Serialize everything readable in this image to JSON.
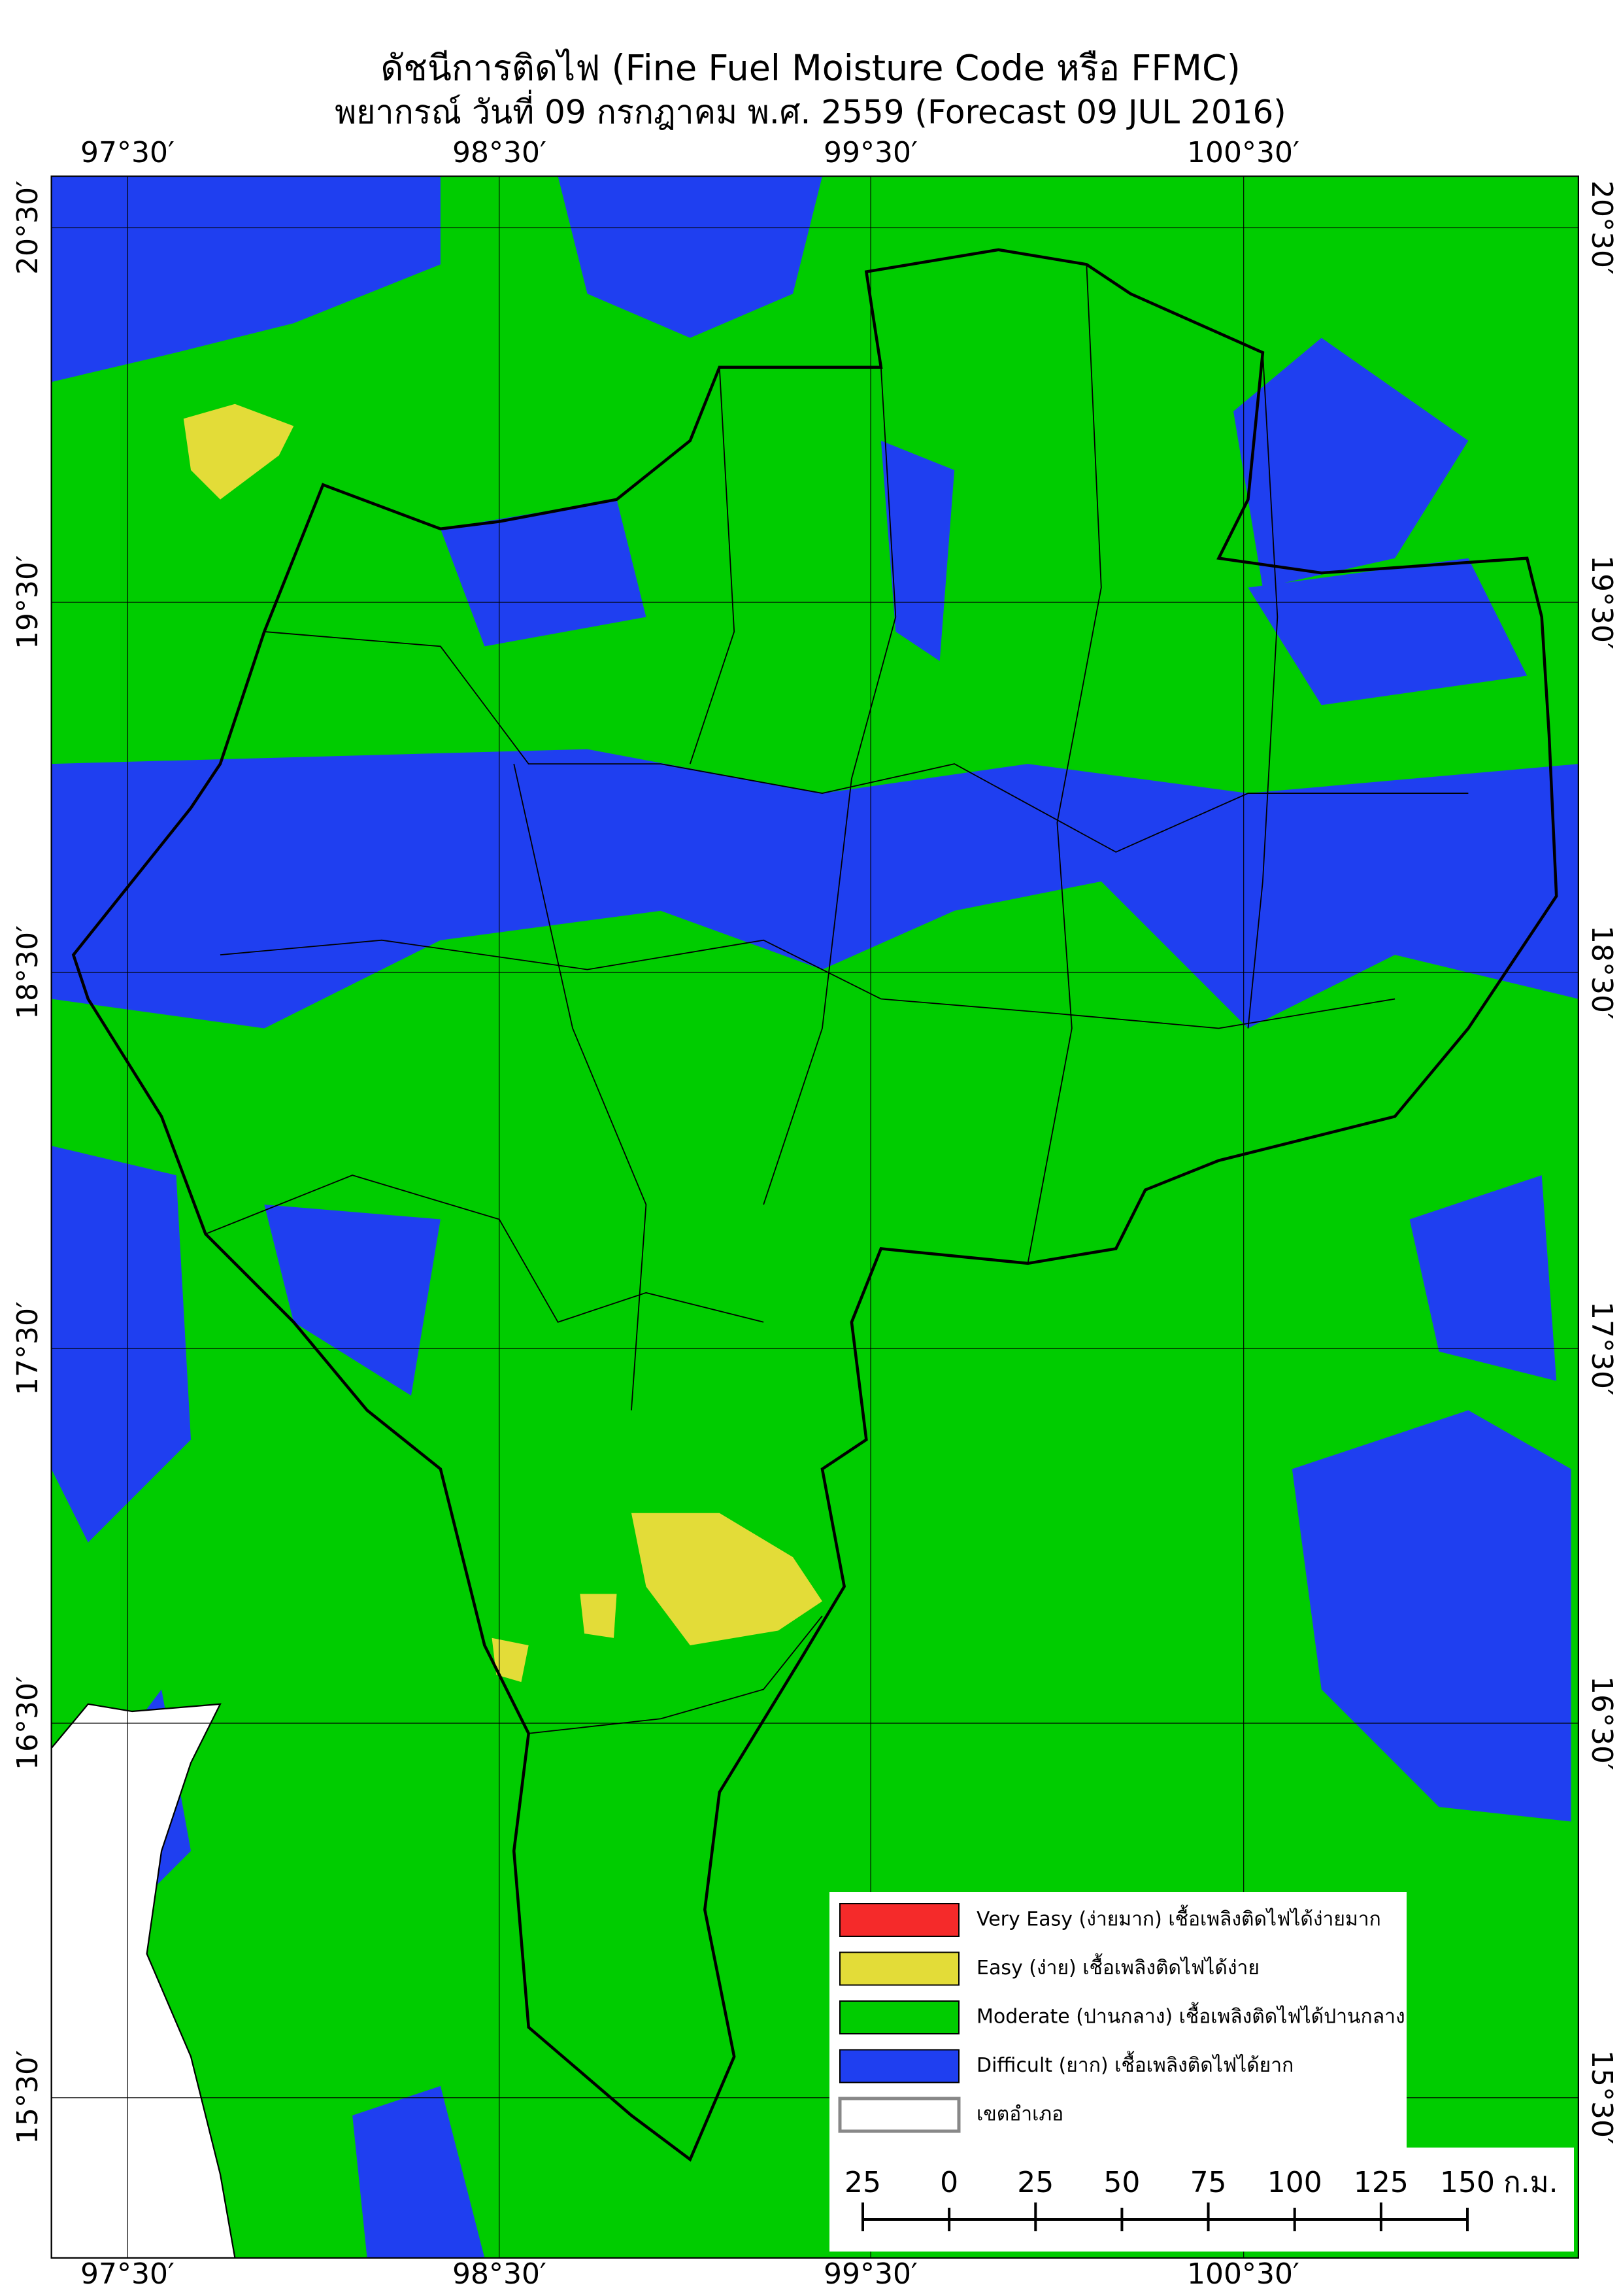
{
  "title": "ดัชนีการติดไฟ (Fine Fuel Moisture Code หรือ FFMC)",
  "subtitle": "พยากรณ์ วันที่ 09 กรกฎาคม พ.ศ. 2559 (Forecast 09 JUL 2016)",
  "longitude_labels": [
    "97°30′",
    "98°30′",
    "99°30′",
    "100°30′"
  ],
  "latitude_labels": [
    "20°30′",
    "19°30′",
    "18°30′",
    "17°30′",
    "16°30′",
    "15°30′"
  ],
  "legend": [
    {
      "label": "Very Easy (ง่ายมาก) เชื้อเพลิงติดไฟได้ง่ายมาก",
      "color": "#f52a2a"
    },
    {
      "label": "Easy (ง่าย) เชื้อเพลิงติดไฟได้ง่าย",
      "color": "#e3dc38"
    },
    {
      "label": "Moderate (ปานกลาง) เชื้อเพลิงติดไฟได้ปานกลาง",
      "color": "#00cc00"
    },
    {
      "label": "Difficult (ยาก) เชื้อเพลิงติดไฟได้ยาก",
      "color": "#1f3ff0"
    },
    {
      "label": "เขตอำเภอ",
      "color": "#ffffff"
    }
  ],
  "scale_bar": {
    "labels": [
      "25",
      "0",
      "25",
      "50",
      "75",
      "100",
      "125",
      "150"
    ],
    "unit": "ก.ม."
  }
}
